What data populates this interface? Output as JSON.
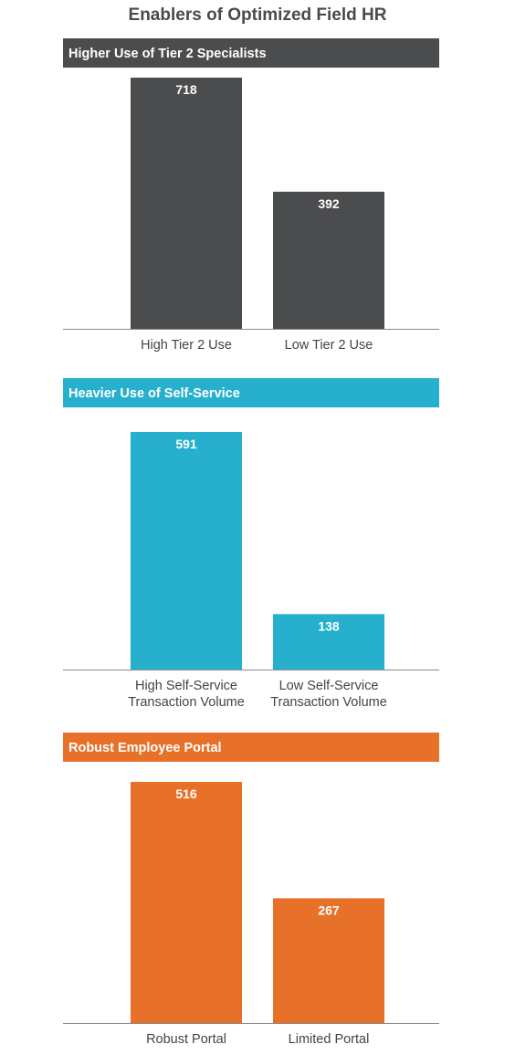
{
  "title": "Enablers of Optimized Field HR",
  "chart_data": [
    {
      "type": "bar",
      "title": "Higher Use of Tier 2 Specialists",
      "color": "#4b4c4e",
      "categories": [
        [
          "High Tier 2 Use"
        ],
        [
          "Low Tier 2 Use"
        ]
      ],
      "values": [
        718,
        392
      ],
      "ylim": [
        0,
        718
      ]
    },
    {
      "type": "bar",
      "title": "Heavier Use of Self-Service",
      "color": "#27b0ce",
      "categories": [
        [
          "High Self-Service",
          "Transaction Volume"
        ],
        [
          "Low Self-Service",
          "Transaction Volume"
        ]
      ],
      "values": [
        591,
        138
      ],
      "ylim": [
        0,
        591
      ]
    },
    {
      "type": "bar",
      "title": "Robust Employee Portal",
      "color": "#e8712a",
      "categories": [
        [
          "Robust Portal"
        ],
        [
          "Limited Portal"
        ]
      ],
      "values": [
        516,
        267
      ],
      "ylim": [
        0,
        516
      ]
    }
  ]
}
